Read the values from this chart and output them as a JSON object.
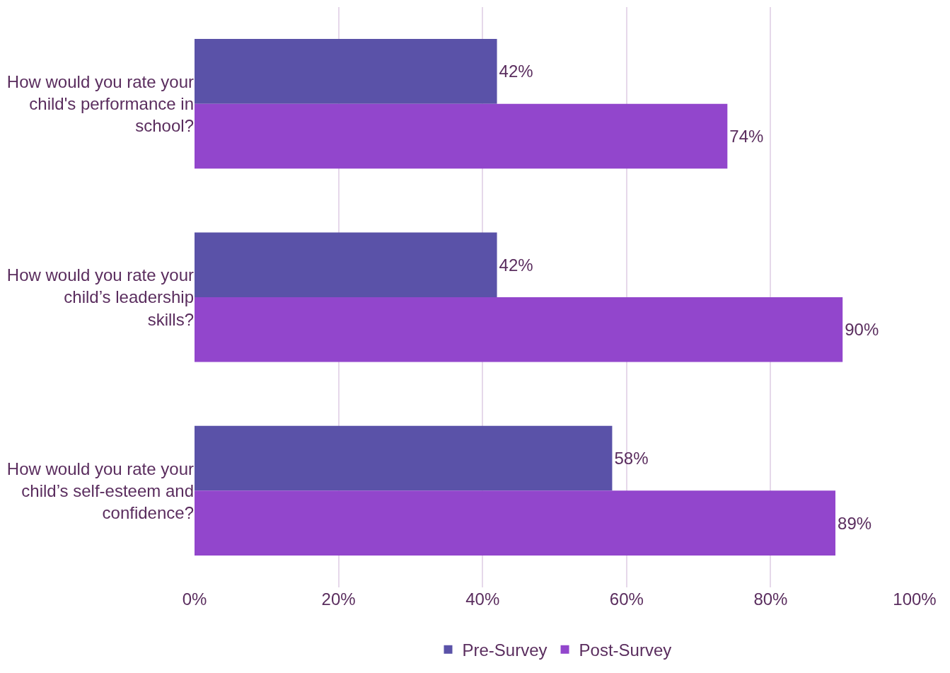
{
  "chart_data": {
    "type": "bar",
    "orientation": "horizontal",
    "categories": [
      "How would you rate your child's performance in school?",
      "How would you rate your child’s leadership skills?",
      "How would you rate your child’s self-esteem and confidence?"
    ],
    "series": [
      {
        "name": "Pre-Survey",
        "color": "#5a52a8",
        "values": [
          42,
          42,
          58
        ],
        "value_labels": [
          "42%",
          "42%",
          "58%"
        ]
      },
      {
        "name": "Post-Survey",
        "color": "#9246cc",
        "values": [
          74,
          90,
          89
        ],
        "value_labels": [
          "74%",
          "90%",
          "89%"
        ]
      }
    ],
    "xlim": [
      0,
      100
    ],
    "xticks": [
      {
        "value": 0,
        "label": "0%"
      },
      {
        "value": 20,
        "label": "20%"
      },
      {
        "value": 40,
        "label": "40%"
      },
      {
        "value": 60,
        "label": "60%"
      },
      {
        "value": 80,
        "label": "80%"
      },
      {
        "value": 100,
        "label": "100%"
      }
    ],
    "grid": "x",
    "legend": "bottom"
  }
}
